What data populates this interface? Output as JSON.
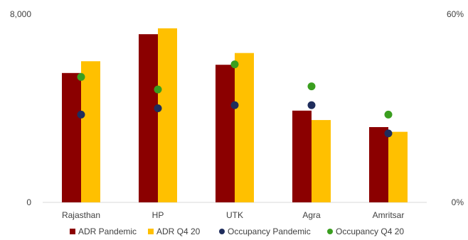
{
  "chart_data": {
    "type": "bar",
    "categories": [
      "Rajasthan",
      "HP",
      "UTK",
      "Agra",
      "Amritsar"
    ],
    "series": [
      {
        "name": "ADR Pandemic",
        "kind": "bar",
        "axis": "left",
        "color": "#8B0000",
        "values": [
          5500,
          7150,
          5850,
          3900,
          3200
        ]
      },
      {
        "name": "ADR Q4 20",
        "kind": "bar",
        "axis": "left",
        "color": "#FFC000",
        "values": [
          6000,
          7400,
          6350,
          3500,
          3000
        ]
      },
      {
        "name": "Occupancy Pandemic",
        "kind": "point",
        "axis": "right",
        "color": "#1F2D5C",
        "values": [
          28,
          30,
          31,
          31,
          22
        ]
      },
      {
        "name": "Occupancy Q4 20",
        "kind": "point",
        "axis": "right",
        "color": "#3A9E1F",
        "values": [
          40,
          36,
          44,
          37,
          28
        ]
      }
    ],
    "yleft": {
      "min": 0,
      "max": 8000,
      "ticks": [
        "0",
        "8,000"
      ]
    },
    "yright": {
      "min": 0,
      "max": 60,
      "ticks": [
        "0%",
        "60%"
      ]
    },
    "legend_position": "bottom",
    "grid": false
  }
}
